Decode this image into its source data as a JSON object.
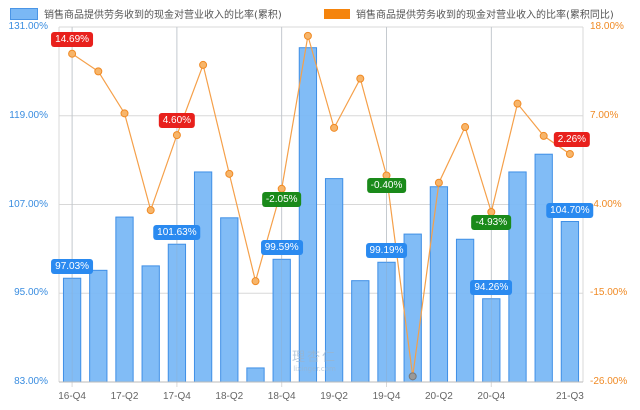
{
  "chart_data": {
    "type": "bar+line",
    "title": "",
    "legend_position": "top",
    "grid": true,
    "categories": [
      "16-Q4",
      "17-Q1",
      "17-Q2",
      "17-Q3",
      "17-Q4",
      "18-Q1",
      "18-Q2",
      "18-Q3",
      "18-Q4",
      "19-Q1",
      "19-Q2",
      "19-Q3",
      "19-Q4",
      "20-Q1",
      "20-Q2",
      "20-Q3",
      "20-Q4",
      "21-Q1",
      "21-Q2",
      "21-Q3"
    ],
    "xtick_labels": [
      "16-Q4",
      "17-Q2",
      "17-Q4",
      "18-Q2",
      "18-Q4",
      "19-Q2",
      "19-Q4",
      "20-Q2",
      "20-Q4",
      "21-Q3"
    ],
    "series": [
      {
        "name": "销售商品提供劳务收到的现金对营业收入的比率(累积)",
        "type": "bar",
        "axis": "left",
        "color": "#7ab8f5",
        "values": [
          97.03,
          98.1,
          105.3,
          98.7,
          101.63,
          111.4,
          105.2,
          84.9,
          99.59,
          128.2,
          110.5,
          96.7,
          99.19,
          103.0,
          109.4,
          102.3,
          94.26,
          111.4,
          113.8,
          104.7
        ]
      },
      {
        "name": "销售商品提供劳务收到的现金对营业收入的比率(累积同比)",
        "type": "line",
        "axis": "right",
        "color": "#f5a04a",
        "values": [
          14.69,
          12.5,
          7.3,
          -4.7,
          4.6,
          13.3,
          -0.2,
          -13.5,
          -2.05,
          16.9,
          5.5,
          11.6,
          -0.4,
          -25.3,
          -1.3,
          5.6,
          -4.93,
          8.5,
          4.5,
          2.26
        ]
      }
    ],
    "left_axis": {
      "ticks": [
        "131.00%",
        "119.00%",
        "107.00%",
        "95.00%",
        "83.00%"
      ],
      "ylim": [
        83,
        131
      ]
    },
    "right_axis": {
      "ticks": [
        "18.00%",
        "7.00%",
        "-4.00%",
        "-15.00%",
        "-26.00%"
      ],
      "ylim": [
        -26,
        18
      ]
    },
    "bar_labels": [
      {
        "index": 0,
        "text": "97.03%"
      },
      {
        "index": 4,
        "text": "101.63%"
      },
      {
        "index": 8,
        "text": "99.59%"
      },
      {
        "index": 12,
        "text": "99.19%"
      },
      {
        "index": 16,
        "text": "94.26%"
      },
      {
        "index": 19,
        "text": "104.70%"
      }
    ],
    "line_labels": [
      {
        "index": 0,
        "text": "14.69%",
        "color": "#e8201c"
      },
      {
        "index": 4,
        "text": "4.60%",
        "color": "#e8201c"
      },
      {
        "index": 8,
        "text": "-2.05%",
        "color": "#1a8a1a"
      },
      {
        "index": 12,
        "text": "-0.40%",
        "color": "#1a8a1a"
      },
      {
        "index": 16,
        "text": "-4.93%",
        "color": "#1a8a1a"
      },
      {
        "index": 19,
        "text": "2.26%",
        "color": "#e8201c"
      }
    ]
  },
  "legend": {
    "bar_label": "销售商品提供劳务收到的现金对营业收入的比率(累积)",
    "line_label": "销售商品提供劳务收到的现金对营业收入的比率(累积同比)"
  },
  "watermark": {
    "cn": "理杏仁",
    "en": "lixinger.com"
  }
}
